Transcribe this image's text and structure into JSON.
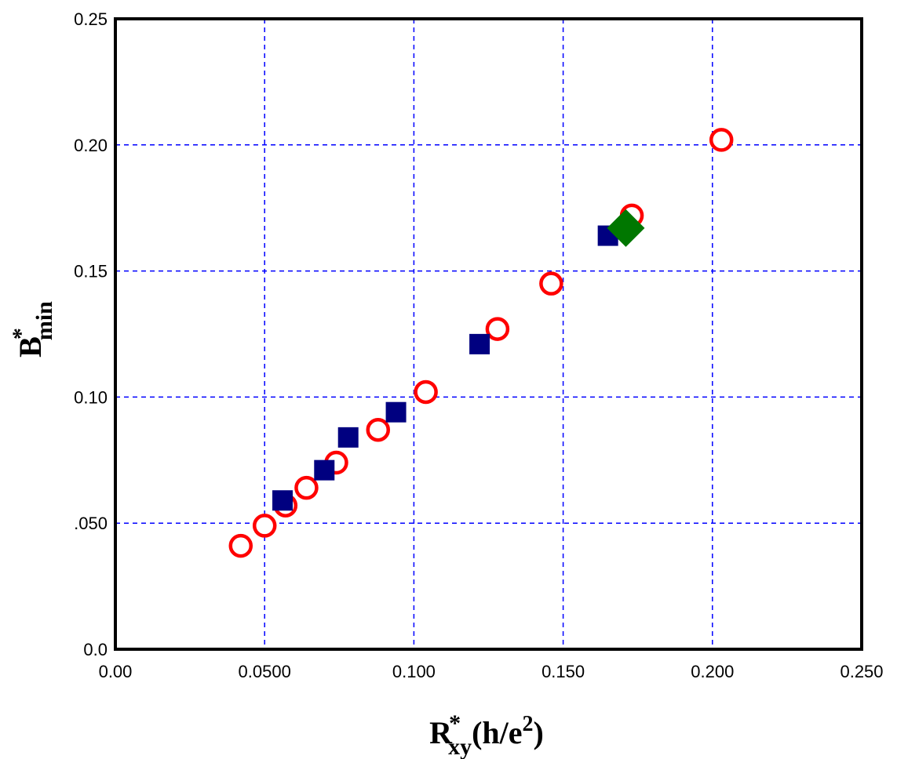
{
  "chart_data": {
    "type": "scatter",
    "title": "",
    "xlabel": {
      "main": "R",
      "sup": "*",
      "sub": "xy",
      "unit": "(h/e",
      "unit_sup": "2",
      "unit_end": ")"
    },
    "ylabel": {
      "main": "B",
      "sup": "*",
      "sub": "min"
    },
    "xlim": [
      0,
      0.25
    ],
    "ylim": [
      0,
      0.25
    ],
    "x_ticks": [
      {
        "value": 0.0,
        "label": "0.00"
      },
      {
        "value": 0.05,
        "label": "0.0500"
      },
      {
        "value": 0.1,
        "label": "0.100"
      },
      {
        "value": 0.15,
        "label": "0.150"
      },
      {
        "value": 0.2,
        "label": "0.200"
      },
      {
        "value": 0.25,
        "label": "0.250"
      }
    ],
    "y_ticks": [
      {
        "value": 0.0,
        "label": "0.0"
      },
      {
        "value": 0.05,
        "label": ".050"
      },
      {
        "value": 0.1,
        "label": "0.10"
      },
      {
        "value": 0.15,
        "label": "0.15"
      },
      {
        "value": 0.2,
        "label": "0.20"
      },
      {
        "value": 0.25,
        "label": "0.25"
      }
    ],
    "grid": true,
    "colors": {
      "grid": "#0000ff",
      "circles": "#ff0000",
      "squares": "#000080",
      "diamonds": "#007700"
    },
    "series": [
      {
        "marker": "circle",
        "points": [
          [
            0.042,
            0.041
          ],
          [
            0.05,
            0.049
          ],
          [
            0.057,
            0.057
          ],
          [
            0.064,
            0.064
          ],
          [
            0.074,
            0.074
          ],
          [
            0.088,
            0.087
          ],
          [
            0.104,
            0.102
          ],
          [
            0.128,
            0.127
          ],
          [
            0.146,
            0.145
          ],
          [
            0.173,
            0.172
          ],
          [
            0.203,
            0.202
          ]
        ]
      },
      {
        "marker": "square",
        "points": [
          [
            0.056,
            0.059
          ],
          [
            0.07,
            0.071
          ],
          [
            0.078,
            0.084
          ],
          [
            0.094,
            0.094
          ],
          [
            0.122,
            0.121
          ],
          [
            0.165,
            0.164
          ]
        ]
      },
      {
        "marker": "diamond",
        "points": [
          [
            0.171,
            0.167
          ]
        ]
      }
    ]
  }
}
